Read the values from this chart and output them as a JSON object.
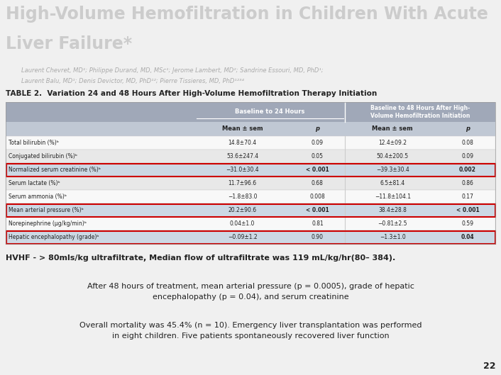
{
  "title_line1": "High-Volume Hemofiltration in Children With Acute",
  "title_line2": "Liver Failure*",
  "authors": "Laurent Chevret, MD¹; Philippe Durand, MD, MSc¹; Jerome Lambert, MD²; Sandrine Essouri, MD, PhD¹;",
  "authors2": "Laurent Balu, MD¹; Denis Devictor, MD, PhD¹²; Pierre Tissieres, MD, PhD¹²³⁴",
  "table_title": "TABLE 2.  Variation 24 and 48 Hours After High-Volume Hemofiltration Therapy Initiation",
  "sub_headers": [
    "",
    "Mean ± sem",
    "p",
    "Mean ± sem",
    "p"
  ],
  "rows": [
    [
      "Total bilirubin (%)ᵇ",
      "14.8±70.4",
      "0.09",
      "12.4±09.2",
      "0.08"
    ],
    [
      "Conjugated bilirubin (%)ᵇ",
      "53.6±247.4",
      "0.05",
      "50.4±200.5",
      "0.09"
    ],
    [
      "Normalized serum creatinine (%)ᵇ",
      "−31.0±30.4",
      "< 0.001",
      "−39.3±30.4",
      "0.002"
    ],
    [
      "Serum lactate (%)ᵇ",
      "11.7±96.6",
      "0.68",
      "6.5±81.4",
      "0.86"
    ],
    [
      "Serum ammonia (%)ᵇ",
      "−1.8±83.0",
      "0.008",
      "−11.8±104.1",
      "0.17"
    ],
    [
      "Mean arterial pressure (%)ᵇ",
      "20.2±90.6",
      "< 0.001",
      "38.4±28.8",
      "< 0.001"
    ],
    [
      "Norepinephrine (μg/kg/min)ᵇ",
      "0.04±1.0",
      "0.81",
      "−0.81±2.5",
      "0.59"
    ],
    [
      "Hepatic encephalopathy (grade)ᵇ",
      "−0.09±1.2",
      "0.90",
      "−1.3±1.0",
      "0.04"
    ]
  ],
  "highlighted_rows": [
    2,
    5,
    7
  ],
  "footnote1": "HVHF - > 80mls/kg ultrafiltrate, Median flow of ultrafiltrate was 119 mL/kg/hr(80– 384).",
  "footnote2": "After 48 hours of treatment, mean arterial pressure (p = 0.0005), grade of hepatic\nencephalopathy (p = 0.04), and serum creatinine",
  "footnote3": "Overall mortality was 45.4% (n = 10). Emergency liver transplantation was performed\nin eight children. Five patients spontaneously recovered liver function",
  "page_number": "22",
  "bg_color": "#f0f0f0",
  "title_color": "#cccccc",
  "header_bg": "#a0a8b8",
  "subheader_bg": "#c0c8d4",
  "highlight_bg": "#ccd8e4",
  "row_white": "#f8f8f8",
  "row_gray": "#e8e8e8",
  "red_border": "#cc0000",
  "text_dark": "#222222",
  "text_gray": "#888888"
}
